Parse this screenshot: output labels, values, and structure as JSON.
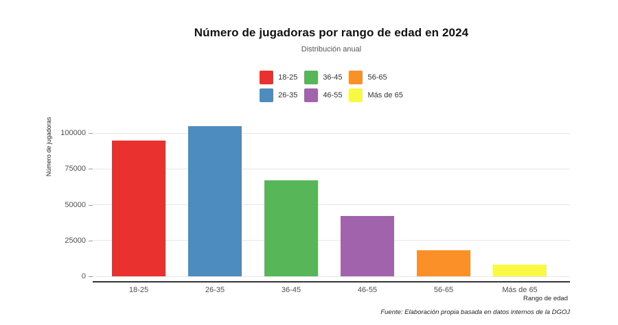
{
  "chart_data": {
    "type": "bar",
    "title": "Número de jugadoras por rango de edad en 2024",
    "subtitle": "Distribución anual",
    "xlabel": "Rango de edad",
    "ylabel": "Número de jugadoras",
    "caption": "Fuente: Elaboración propia basada en datos internos de la DGOJ",
    "categories": [
      "18-25",
      "26-35",
      "36-45",
      "46-55",
      "56-65",
      "Más de 65"
    ],
    "values": [
      95000,
      105000,
      67000,
      42000,
      18000,
      8000
    ],
    "colors": [
      "#e93130",
      "#4c8cbf",
      "#57b657",
      "#a263ad",
      "#fb9028",
      "#f9f943"
    ],
    "legend": [
      {
        "label": "18-25",
        "color": "#e93130"
      },
      {
        "label": "26-35",
        "color": "#4c8cbf"
      },
      {
        "label": "36-45",
        "color": "#57b657"
      },
      {
        "label": "46-55",
        "color": "#a263ad"
      },
      {
        "label": "56-65",
        "color": "#fb9028"
      },
      {
        "label": "Más de 65",
        "color": "#f9f943"
      }
    ],
    "legend_position": "top-center",
    "legend_layout": "2 rows x 3 columns, column-major",
    "ylim": [
      0,
      112500
    ],
    "yticks": [
      0,
      25000,
      50000,
      75000,
      100000
    ],
    "ytick_labels": [
      "0",
      "25000",
      "50000",
      "75000",
      "100000"
    ],
    "grid": "horizontal-major-only",
    "axis_line_color": "#333333",
    "gridline_color": "#e7e7e7"
  }
}
